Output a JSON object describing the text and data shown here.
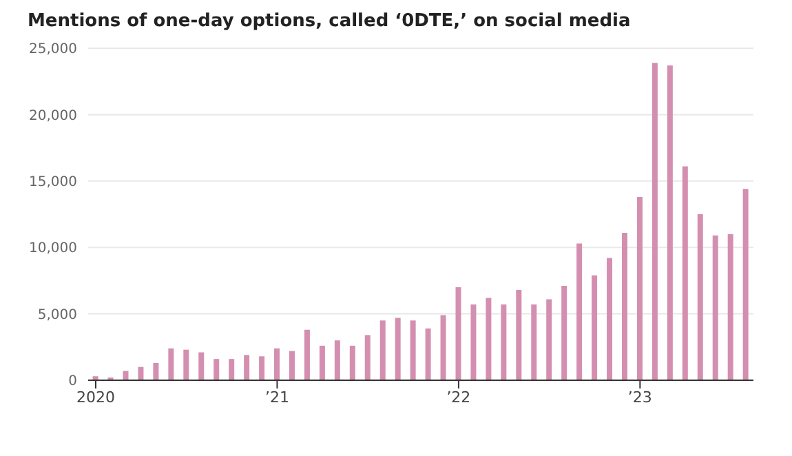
{
  "chart_data": {
    "type": "bar",
    "title": "Mentions of one-day options, called ‘0DTE,’ on social media",
    "categories": [
      "2020",
      null,
      null,
      null,
      null,
      null,
      null,
      null,
      null,
      null,
      null,
      null,
      "’21",
      null,
      null,
      null,
      null,
      null,
      null,
      null,
      null,
      null,
      null,
      null,
      "’22",
      null,
      null,
      null,
      null,
      null,
      null,
      null,
      null,
      null,
      null,
      null,
      "’23",
      null,
      null,
      null,
      null,
      null,
      null,
      null
    ],
    "values": [
      300,
      200,
      700,
      1000,
      1300,
      2400,
      2300,
      2100,
      1600,
      1600,
      1900,
      1800,
      2400,
      2200,
      3800,
      2600,
      3000,
      2600,
      3400,
      4500,
      4700,
      4500,
      3900,
      4900,
      7000,
      5700,
      6200,
      5700,
      6800,
      5700,
      6100,
      7100,
      10300,
      7900,
      9200,
      11100,
      13800,
      23900,
      23700,
      16100,
      12500,
      10900,
      11000,
      14400
    ],
    "color": "#d48fb0",
    "ylim": [
      0,
      25000
    ],
    "yticks": [
      0,
      {
        "value": 5000,
        "label": "5,000"
      },
      {
        "value": 10000,
        "label": "10,000"
      },
      {
        "value": 15000,
        "label": "15,000"
      },
      {
        "value": 20000,
        "label": "20,000"
      },
      {
        "value": 25000,
        "label": "25,000"
      }
    ],
    "grid": "y"
  }
}
